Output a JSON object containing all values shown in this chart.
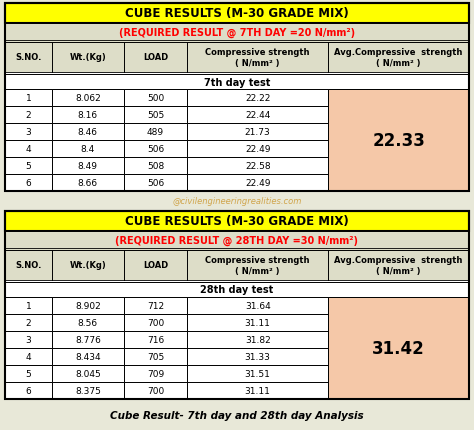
{
  "title1": "CUBE RESULTS (M-30 GRADE MIX)",
  "subtitle1": "(REQUIRED RESULT @ 7TH DAY =20 N/mm²)",
  "test1_label": "7th day test",
  "avg1": "22.33",
  "headers": [
    "S.NO.",
    "Wt.(Kg)",
    "LOAD",
    "Compressive strength\n( N/mm² )",
    "Avg.Compressive  strength\n( N/mm² )"
  ],
  "data7": [
    [
      "1",
      "8.062",
      "500",
      "22.22"
    ],
    [
      "2",
      "8.16",
      "505",
      "22.44"
    ],
    [
      "3",
      "8.46",
      "489",
      "21.73"
    ],
    [
      "4",
      "8.4",
      "506",
      "22.49"
    ],
    [
      "5",
      "8.49",
      "508",
      "22.58"
    ],
    [
      "6",
      "8.66",
      "506",
      "22.49"
    ]
  ],
  "title2": "CUBE RESULTS (M-30 GRADE MIX)",
  "subtitle2": "(REQUIRED RESULT @ 28TH DAY =30 N/mm²)",
  "test2_label": "28th day test",
  "avg2": "31.42",
  "data28": [
    [
      "1",
      "8.902",
      "712",
      "31.64"
    ],
    [
      "2",
      "8.56",
      "700",
      "31.11"
    ],
    [
      "3",
      "8.776",
      "716",
      "31.82"
    ],
    [
      "4",
      "8.434",
      "705",
      "31.33"
    ],
    [
      "5",
      "8.045",
      "709",
      "31.51"
    ],
    [
      "6",
      "8.375",
      "700",
      "31.11"
    ]
  ],
  "footer": "Cube Result- 7th day and 28th day Analysis",
  "bg_yellow": "#FFFF00",
  "bg_olive": "#ddddc8",
  "bg_salmon": "#f5c8a8",
  "bg_page": "#e8e8d8",
  "watermark": "@civilengineeringrealities.com"
}
